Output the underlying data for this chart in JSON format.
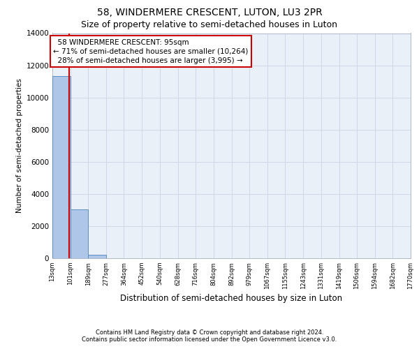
{
  "title_line1": "58, WINDERMERE CRESCENT, LUTON, LU3 2PR",
  "title_line2": "Size of property relative to semi-detached houses in Luton",
  "xlabel": "Distribution of semi-detached houses by size in Luton",
  "ylabel": "Number of semi-detached properties",
  "property_size": 95,
  "property_label": "58 WINDERMERE CRESCENT: 95sqm",
  "pct_smaller": 71,
  "count_smaller": "10,264",
  "pct_larger": 28,
  "count_larger": "3,995",
  "bin_edges": [
    13,
    101,
    189,
    277,
    364,
    452,
    540,
    628,
    716,
    804,
    892,
    979,
    1067,
    1155,
    1243,
    1331,
    1419,
    1506,
    1594,
    1682,
    1770
  ],
  "bin_labels": [
    "13sqm",
    "101sqm",
    "189sqm",
    "277sqm",
    "364sqm",
    "452sqm",
    "540sqm",
    "628sqm",
    "716sqm",
    "804sqm",
    "892sqm",
    "979sqm",
    "1067sqm",
    "1155sqm",
    "1243sqm",
    "1331sqm",
    "1419sqm",
    "1506sqm",
    "1594sqm",
    "1682sqm",
    "1770sqm"
  ],
  "bar_heights": [
    11350,
    3050,
    200,
    0,
    0,
    0,
    0,
    0,
    0,
    0,
    0,
    0,
    0,
    0,
    0,
    0,
    0,
    0,
    0,
    0
  ],
  "bar_color": "#aec6e8",
  "bar_edge_color": "#5a8fc0",
  "grid_color": "#d0d8e8",
  "background_color": "#eaf0f8",
  "annotation_box_color": "#cc0000",
  "vline_color": "#cc0000",
  "ylim": [
    0,
    14000
  ],
  "yticks": [
    0,
    2000,
    4000,
    6000,
    8000,
    10000,
    12000,
    14000
  ],
  "footer_line1": "Contains HM Land Registry data © Crown copyright and database right 2024.",
  "footer_line2": "Contains public sector information licensed under the Open Government Licence v3.0.",
  "title1_fontsize": 10,
  "title2_fontsize": 9,
  "footer_fontsize": 6.0,
  "ylabel_fontsize": 7.5,
  "xlabel_fontsize": 8.5,
  "ytick_fontsize": 7.5,
  "xtick_fontsize": 6.0,
  "annot_fontsize": 7.5
}
